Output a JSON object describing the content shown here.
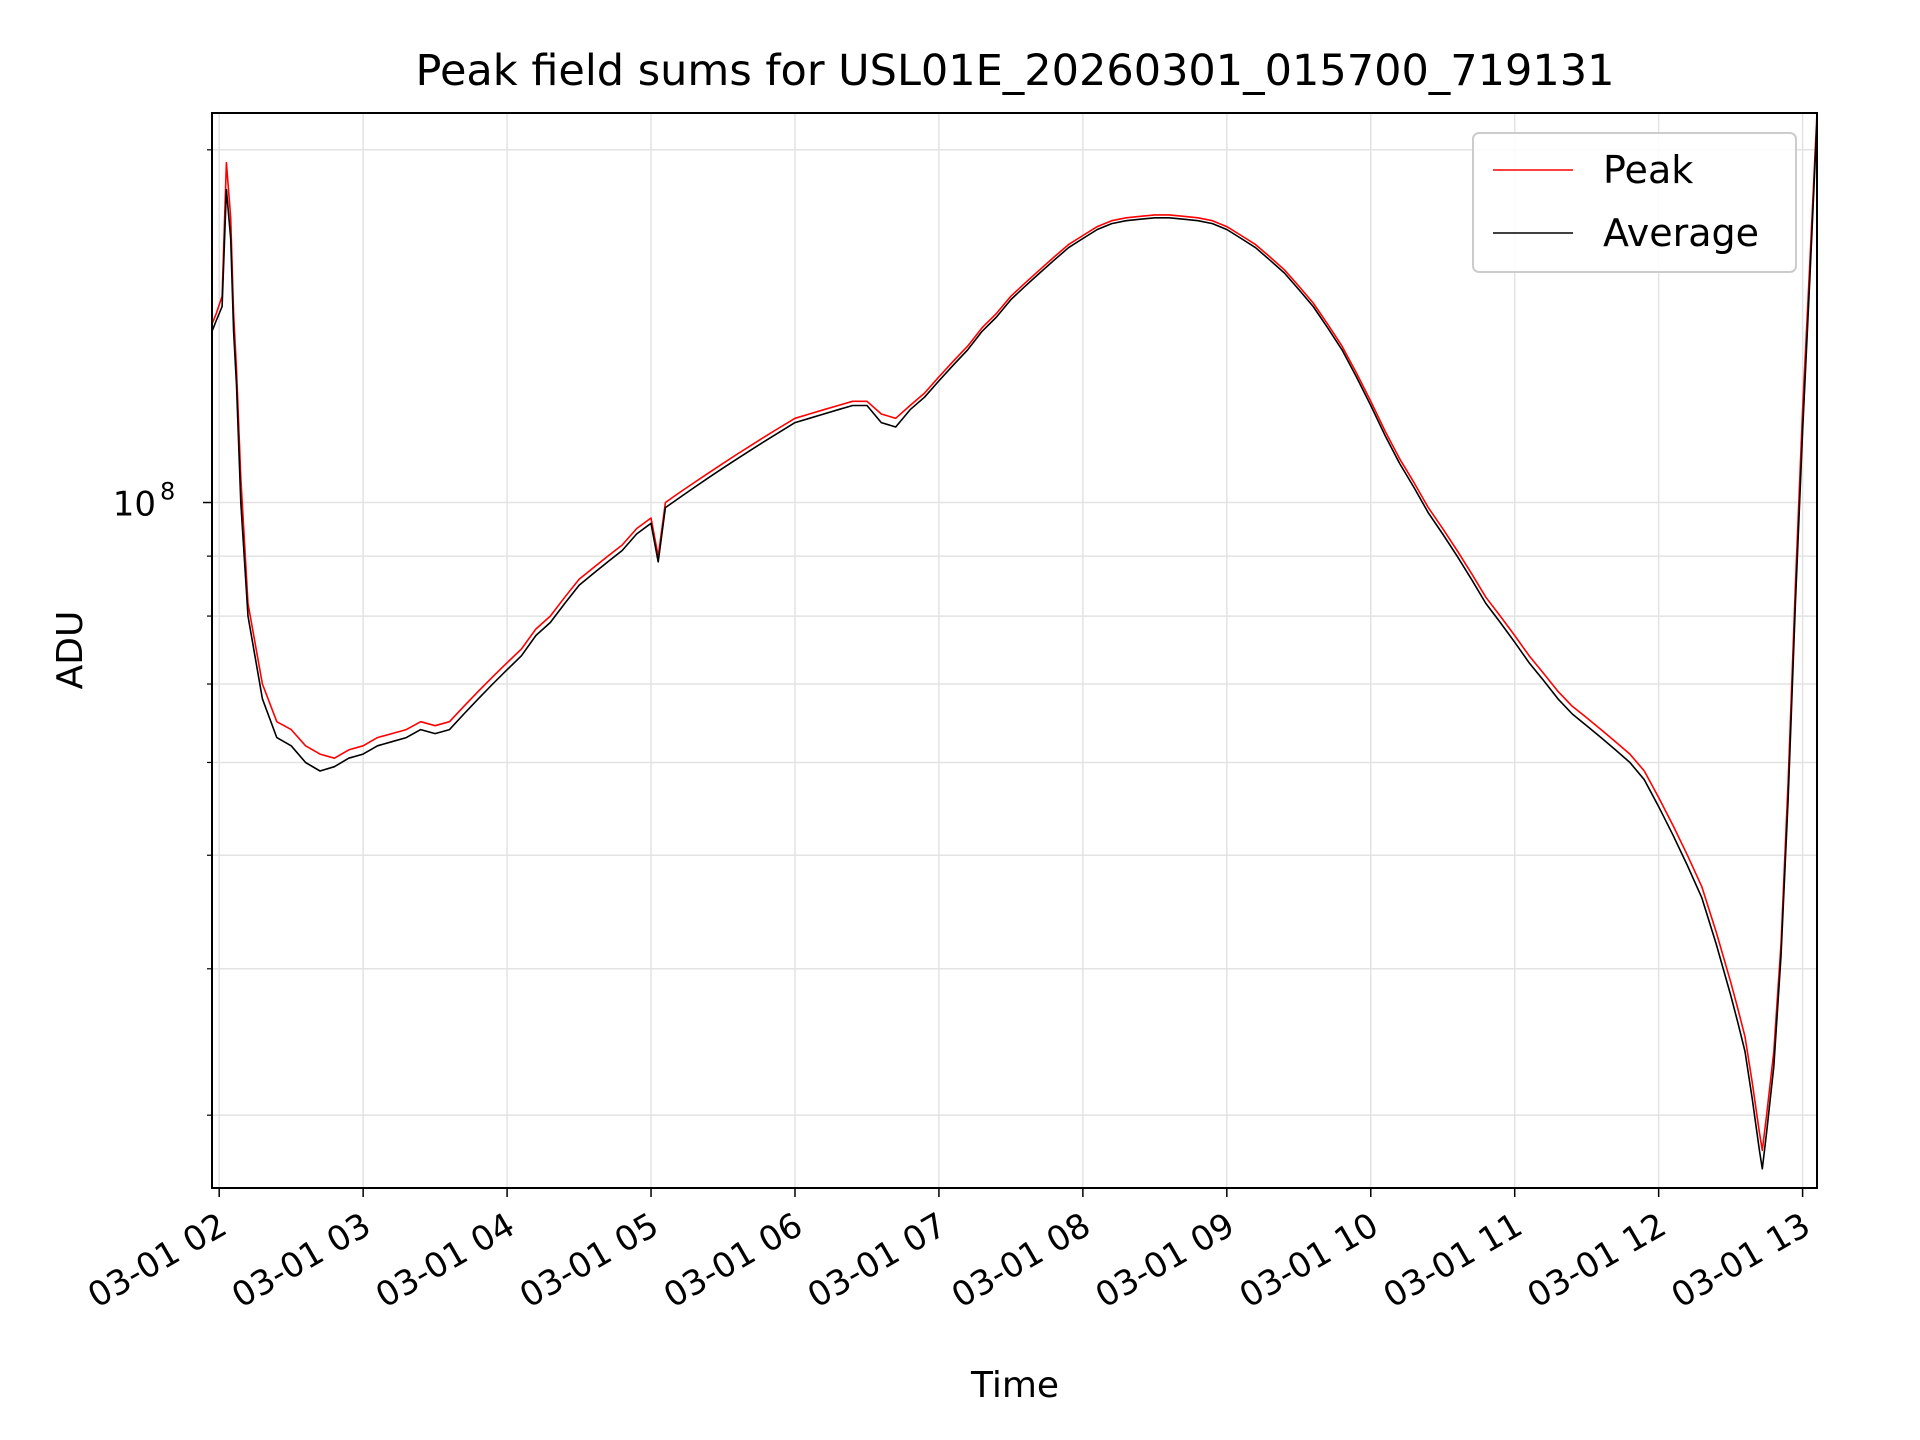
{
  "chart_data": {
    "type": "line",
    "title": "Peak field sums for USL01E_20260301_015700_719131",
    "xlabel": "Time",
    "ylabel": "ADU",
    "yscale": "log",
    "ylim": [
      26000000,
      215000000
    ],
    "xlim": [
      1.95,
      13.1
    ],
    "grid": true,
    "legend_position": "top-right",
    "x_ticks": [
      {
        "value": 2,
        "label": "03-01 02"
      },
      {
        "value": 3,
        "label": "03-01 03"
      },
      {
        "value": 4,
        "label": "03-01 04"
      },
      {
        "value": 5,
        "label": "03-01 05"
      },
      {
        "value": 6,
        "label": "03-01 06"
      },
      {
        "value": 7,
        "label": "03-01 07"
      },
      {
        "value": 8,
        "label": "03-01 08"
      },
      {
        "value": 9,
        "label": "03-01 09"
      },
      {
        "value": 10,
        "label": "03-01 10"
      },
      {
        "value": 11,
        "label": "03-01 11"
      },
      {
        "value": 12,
        "label": "03-01 12"
      },
      {
        "value": 13,
        "label": "03-01 13"
      }
    ],
    "y_major_ticks": [
      {
        "value": 100000000,
        "base": "10",
        "exp": "8"
      }
    ],
    "y_minor_ticks": [
      30000000,
      40000000,
      50000000,
      60000000,
      70000000,
      80000000,
      90000000,
      200000000
    ],
    "series": [
      {
        "name": "Peak",
        "color": "#ff0000",
        "x": [
          1.95,
          1.98,
          2.02,
          2.05,
          2.08,
          2.1,
          2.12,
          2.15,
          2.2,
          2.3,
          2.4,
          2.5,
          2.6,
          2.7,
          2.8,
          2.9,
          3.0,
          3.1,
          3.2,
          3.3,
          3.4,
          3.5,
          3.6,
          3.7,
          3.8,
          3.9,
          4.0,
          4.1,
          4.2,
          4.3,
          4.4,
          4.5,
          4.6,
          4.7,
          4.8,
          4.9,
          5.0,
          5.05,
          5.1,
          5.2,
          5.3,
          5.4,
          5.5,
          5.6,
          5.7,
          5.8,
          5.9,
          6.0,
          6.1,
          6.2,
          6.3,
          6.4,
          6.5,
          6.6,
          6.7,
          6.8,
          6.9,
          7.0,
          7.1,
          7.2,
          7.3,
          7.4,
          7.5,
          7.6,
          7.7,
          7.8,
          7.9,
          8.0,
          8.1,
          8.2,
          8.3,
          8.4,
          8.5,
          8.6,
          8.7,
          8.8,
          8.9,
          9.0,
          9.1,
          9.2,
          9.3,
          9.4,
          9.5,
          9.6,
          9.7,
          9.8,
          9.9,
          10.0,
          10.1,
          10.2,
          10.3,
          10.4,
          10.5,
          10.6,
          10.7,
          10.8,
          10.9,
          11.0,
          11.1,
          11.2,
          11.3,
          11.4,
          11.5,
          11.6,
          11.7,
          11.8,
          11.9,
          12.0,
          12.1,
          12.2,
          12.3,
          12.4,
          12.5,
          12.55,
          12.6,
          12.65,
          12.7,
          12.72,
          12.75,
          12.8,
          12.85,
          12.9,
          12.95,
          13.0,
          13.05,
          13.1
        ],
        "values": [
          142000000,
          145000000,
          150000000,
          195000000,
          175000000,
          145000000,
          130000000,
          105000000,
          82000000,
          70000000,
          65000000,
          64000000,
          62000000,
          61000000,
          60500000,
          61500000,
          62000000,
          63000000,
          63500000,
          64000000,
          65000000,
          64500000,
          65000000,
          67000000,
          69000000,
          71000000,
          73000000,
          75000000,
          78000000,
          80000000,
          83000000,
          86000000,
          88000000,
          90000000,
          92000000,
          95000000,
          97000000,
          90000000,
          100000000,
          102000000,
          104000000,
          106000000,
          108000000,
          110000000,
          112000000,
          114000000,
          116000000,
          118000000,
          119000000,
          120000000,
          121000000,
          122000000,
          122000000,
          119000000,
          118000000,
          121000000,
          124000000,
          128000000,
          132000000,
          136000000,
          141000000,
          145000000,
          150000000,
          154000000,
          158000000,
          162000000,
          166000000,
          169000000,
          172000000,
          174000000,
          175000000,
          175500000,
          176000000,
          176000000,
          175500000,
          175000000,
          174000000,
          172000000,
          169000000,
          166000000,
          162000000,
          158000000,
          153000000,
          148000000,
          142000000,
          136000000,
          129000000,
          122000000,
          115000000,
          109000000,
          104000000,
          99000000,
          95000000,
          91000000,
          87000000,
          83000000,
          80000000,
          77000000,
          74000000,
          71500000,
          69000000,
          67000000,
          65500000,
          64000000,
          62500000,
          61000000,
          59000000,
          56000000,
          53000000,
          50000000,
          47000000,
          43000000,
          39000000,
          37000000,
          35000000,
          32000000,
          29000000,
          28000000,
          30000000,
          34000000,
          42000000,
          58000000,
          85000000,
          120000000,
          160000000,
          215000000
        ]
      },
      {
        "name": "Average",
        "color": "#000000",
        "x": [
          1.95,
          1.98,
          2.02,
          2.05,
          2.08,
          2.1,
          2.12,
          2.15,
          2.2,
          2.3,
          2.4,
          2.5,
          2.6,
          2.7,
          2.8,
          2.9,
          3.0,
          3.1,
          3.2,
          3.3,
          3.4,
          3.5,
          3.6,
          3.7,
          3.8,
          3.9,
          4.0,
          4.1,
          4.2,
          4.3,
          4.4,
          4.5,
          4.6,
          4.7,
          4.8,
          4.9,
          5.0,
          5.05,
          5.1,
          5.2,
          5.3,
          5.4,
          5.5,
          5.6,
          5.7,
          5.8,
          5.9,
          6.0,
          6.1,
          6.2,
          6.3,
          6.4,
          6.5,
          6.6,
          6.7,
          6.8,
          6.9,
          7.0,
          7.1,
          7.2,
          7.3,
          7.4,
          7.5,
          7.6,
          7.7,
          7.8,
          7.9,
          8.0,
          8.1,
          8.2,
          8.3,
          8.4,
          8.5,
          8.6,
          8.7,
          8.8,
          8.9,
          9.0,
          9.1,
          9.2,
          9.3,
          9.4,
          9.5,
          9.6,
          9.7,
          9.8,
          9.9,
          10.0,
          10.1,
          10.2,
          10.3,
          10.4,
          10.5,
          10.6,
          10.7,
          10.8,
          10.9,
          11.0,
          11.1,
          11.2,
          11.3,
          11.4,
          11.5,
          11.6,
          11.7,
          11.8,
          11.9,
          12.0,
          12.1,
          12.2,
          12.3,
          12.4,
          12.5,
          12.55,
          12.6,
          12.65,
          12.7,
          12.72,
          12.75,
          12.8,
          12.85,
          12.9,
          12.95,
          13.0,
          13.05,
          13.1
        ],
        "values": [
          140000000,
          143000000,
          147000000,
          185000000,
          168000000,
          140000000,
          126000000,
          100000000,
          80000000,
          68000000,
          63000000,
          62000000,
          60000000,
          59000000,
          59500000,
          60500000,
          61000000,
          62000000,
          62500000,
          63000000,
          64000000,
          63500000,
          64000000,
          66000000,
          68000000,
          70000000,
          72000000,
          74000000,
          77000000,
          79000000,
          82000000,
          85000000,
          87000000,
          89000000,
          91000000,
          94000000,
          96000000,
          89000000,
          99000000,
          101000000,
          103000000,
          105000000,
          107000000,
          109000000,
          111000000,
          113000000,
          115000000,
          117000000,
          118000000,
          119000000,
          120000000,
          121000000,
          121000000,
          117000000,
          116000000,
          120000000,
          123000000,
          127000000,
          131000000,
          135000000,
          140000000,
          144000000,
          149000000,
          153000000,
          157000000,
          161000000,
          165000000,
          168000000,
          171000000,
          173000000,
          174000000,
          174500000,
          175000000,
          175000000,
          174500000,
          174000000,
          173000000,
          171000000,
          168000000,
          165000000,
          161000000,
          157000000,
          152000000,
          147000000,
          141000000,
          135000000,
          128000000,
          121000000,
          114000000,
          108000000,
          103000000,
          98000000,
          94000000,
          90000000,
          86000000,
          82000000,
          79000000,
          76000000,
          73000000,
          70500000,
          68000000,
          66000000,
          64500000,
          63000000,
          61500000,
          60000000,
          58000000,
          55000000,
          52000000,
          49000000,
          46000000,
          42000000,
          38000000,
          36000000,
          34000000,
          31000000,
          28000000,
          27000000,
          29000000,
          33000000,
          41000000,
          56000000,
          82000000,
          115000000,
          155000000,
          212000000
        ]
      }
    ]
  }
}
